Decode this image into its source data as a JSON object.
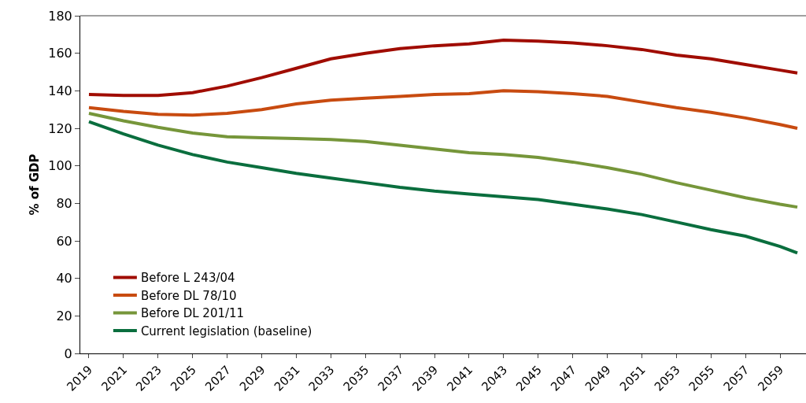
{
  "chart_data": {
    "type": "line",
    "ylabel": "% of GDP",
    "x": [
      2019,
      2021,
      2023,
      2025,
      2027,
      2029,
      2031,
      2033,
      2035,
      2037,
      2039,
      2041,
      2043,
      2045,
      2047,
      2049,
      2051,
      2053,
      2055,
      2057,
      2059,
      2060
    ],
    "series": [
      {
        "name": "Before L 243/04",
        "color": "#a00c00",
        "values": [
          138,
          137.5,
          137.5,
          139,
          142.5,
          147,
          152,
          157,
          160,
          162.5,
          164,
          165,
          167,
          166.5,
          165.5,
          164,
          162,
          159,
          157,
          154,
          151,
          149.5
        ]
      },
      {
        "name": "Before DL 78/10",
        "color": "#c84b10",
        "values": [
          131,
          129,
          127.5,
          127,
          128,
          130,
          133,
          135,
          136,
          137,
          138,
          138.5,
          140,
          139.5,
          138.5,
          137,
          134,
          131,
          128.5,
          125.5,
          122,
          120
        ]
      },
      {
        "name": "Before DL 201/11",
        "color": "#76963a",
        "values": [
          128,
          124,
          120.5,
          117.5,
          115.5,
          115,
          114.5,
          114,
          113,
          111,
          109,
          107,
          106,
          104.5,
          102,
          99,
          95.5,
          91,
          87,
          83,
          79.5,
          78
        ]
      },
      {
        "name": "Current legislation (baseline)",
        "color": "#0a6e3e",
        "values": [
          123.5,
          117,
          111,
          106,
          102,
          99,
          96,
          93.5,
          91,
          88.5,
          86.5,
          85,
          83.5,
          82,
          79.5,
          77,
          74,
          70,
          66,
          62.5,
          57,
          53.5
        ]
      }
    ],
    "xlim": [
      2018.5,
      2060.5
    ],
    "xticks": [
      2019,
      2021,
      2023,
      2025,
      2027,
      2029,
      2031,
      2033,
      2035,
      2037,
      2039,
      2041,
      2043,
      2045,
      2047,
      2049,
      2051,
      2053,
      2055,
      2057,
      2059
    ],
    "ylim": [
      0,
      180
    ],
    "yticks": [
      0,
      20,
      40,
      60,
      80,
      100,
      120,
      140,
      160,
      180
    ],
    "grid": false,
    "legend": "bottom left",
    "marker": "none",
    "line_style": "solid"
  }
}
